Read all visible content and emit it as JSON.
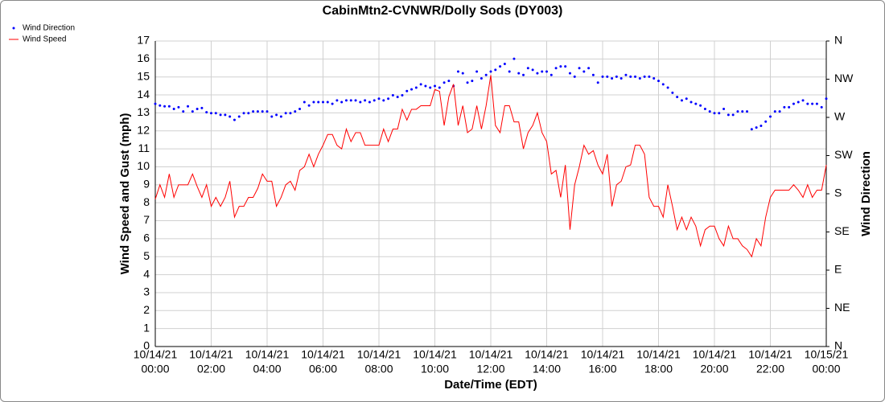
{
  "chart_data": {
    "type": "line",
    "title": "CabinMtn2-CVNWR/Dolly Sods (DY003)",
    "x_label": "Date/Time (EDT)",
    "y_label": "Wind Speed and Gust (mph)",
    "y2_label": "Wind Direction",
    "grid": true,
    "legend": "top-left",
    "xlim": [
      "2021-10-14T00:00",
      "2021-10-15T00:00"
    ],
    "xticks": [
      {
        "value": "2021-10-14T00:00",
        "label": [
          "10/14/21",
          "00:00"
        ]
      },
      {
        "value": "2021-10-14T02:00",
        "label": [
          "10/14/21",
          "02:00"
        ]
      },
      {
        "value": "2021-10-14T04:00",
        "label": [
          "10/14/21",
          "04:00"
        ]
      },
      {
        "value": "2021-10-14T06:00",
        "label": [
          "10/14/21",
          "06:00"
        ]
      },
      {
        "value": "2021-10-14T08:00",
        "label": [
          "10/14/21",
          "08:00"
        ]
      },
      {
        "value": "2021-10-14T10:00",
        "label": [
          "10/14/21",
          "10:00"
        ]
      },
      {
        "value": "2021-10-14T12:00",
        "label": [
          "10/14/21",
          "12:00"
        ]
      },
      {
        "value": "2021-10-14T14:00",
        "label": [
          "10/14/21",
          "14:00"
        ]
      },
      {
        "value": "2021-10-14T16:00",
        "label": [
          "10/14/21",
          "16:00"
        ]
      },
      {
        "value": "2021-10-14T18:00",
        "label": [
          "10/14/21",
          "18:00"
        ]
      },
      {
        "value": "2021-10-14T20:00",
        "label": [
          "10/14/21",
          "20:00"
        ]
      },
      {
        "value": "2021-10-14T22:00",
        "label": [
          "10/14/21",
          "22:00"
        ]
      },
      {
        "value": "2021-10-15T00:00",
        "label": [
          "10/15/21",
          "00:00"
        ]
      }
    ],
    "ylim": [
      0,
      17
    ],
    "yticks": [
      0,
      1,
      2,
      3,
      4,
      5,
      6,
      7,
      8,
      9,
      10,
      11,
      12,
      13,
      14,
      15,
      16,
      17
    ],
    "y2lim": [
      0,
      360
    ],
    "y2ticks": [
      {
        "value": 0,
        "label": "N"
      },
      {
        "value": 45,
        "label": "NE"
      },
      {
        "value": 90,
        "label": "E"
      },
      {
        "value": 135,
        "label": "SE"
      },
      {
        "value": 180,
        "label": "S"
      },
      {
        "value": 225,
        "label": "SW"
      },
      {
        "value": 270,
        "label": "W"
      },
      {
        "value": 315,
        "label": "NW"
      },
      {
        "value": 360,
        "label": "N"
      }
    ],
    "x": [
      "2021-10-14T00:00",
      "2021-10-14T00:10",
      "2021-10-14T00:20",
      "2021-10-14T00:30",
      "2021-10-14T00:40",
      "2021-10-14T00:50",
      "2021-10-14T01:00",
      "2021-10-14T01:10",
      "2021-10-14T01:20",
      "2021-10-14T01:30",
      "2021-10-14T01:40",
      "2021-10-14T01:50",
      "2021-10-14T02:00",
      "2021-10-14T02:10",
      "2021-10-14T02:20",
      "2021-10-14T02:30",
      "2021-10-14T02:40",
      "2021-10-14T02:50",
      "2021-10-14T03:00",
      "2021-10-14T03:10",
      "2021-10-14T03:20",
      "2021-10-14T03:30",
      "2021-10-14T03:40",
      "2021-10-14T03:50",
      "2021-10-14T04:00",
      "2021-10-14T04:10",
      "2021-10-14T04:20",
      "2021-10-14T04:30",
      "2021-10-14T04:40",
      "2021-10-14T04:50",
      "2021-10-14T05:00",
      "2021-10-14T05:10",
      "2021-10-14T05:20",
      "2021-10-14T05:30",
      "2021-10-14T05:40",
      "2021-10-14T05:50",
      "2021-10-14T06:00",
      "2021-10-14T06:10",
      "2021-10-14T06:20",
      "2021-10-14T06:30",
      "2021-10-14T06:40",
      "2021-10-14T06:50",
      "2021-10-14T07:00",
      "2021-10-14T07:10",
      "2021-10-14T07:20",
      "2021-10-14T07:30",
      "2021-10-14T07:40",
      "2021-10-14T07:50",
      "2021-10-14T08:00",
      "2021-10-14T08:10",
      "2021-10-14T08:20",
      "2021-10-14T08:30",
      "2021-10-14T08:40",
      "2021-10-14T08:50",
      "2021-10-14T09:00",
      "2021-10-14T09:10",
      "2021-10-14T09:20",
      "2021-10-14T09:30",
      "2021-10-14T09:40",
      "2021-10-14T09:50",
      "2021-10-14T10:00",
      "2021-10-14T10:10",
      "2021-10-14T10:20",
      "2021-10-14T10:30",
      "2021-10-14T10:40",
      "2021-10-14T10:50",
      "2021-10-14T11:00",
      "2021-10-14T11:10",
      "2021-10-14T11:20",
      "2021-10-14T11:30",
      "2021-10-14T11:40",
      "2021-10-14T11:50",
      "2021-10-14T12:00",
      "2021-10-14T12:10",
      "2021-10-14T12:20",
      "2021-10-14T12:30",
      "2021-10-14T12:40",
      "2021-10-14T12:50",
      "2021-10-14T13:00",
      "2021-10-14T13:10",
      "2021-10-14T13:20",
      "2021-10-14T13:30",
      "2021-10-14T13:40",
      "2021-10-14T13:50",
      "2021-10-14T14:00",
      "2021-10-14T14:10",
      "2021-10-14T14:20",
      "2021-10-14T14:30",
      "2021-10-14T14:40",
      "2021-10-14T14:50",
      "2021-10-14T15:00",
      "2021-10-14T15:10",
      "2021-10-14T15:20",
      "2021-10-14T15:30",
      "2021-10-14T15:40",
      "2021-10-14T15:50",
      "2021-10-14T16:00",
      "2021-10-14T16:10",
      "2021-10-14T16:20",
      "2021-10-14T16:30",
      "2021-10-14T16:40",
      "2021-10-14T16:50",
      "2021-10-14T17:00",
      "2021-10-14T17:10",
      "2021-10-14T17:20",
      "2021-10-14T17:30",
      "2021-10-14T17:40",
      "2021-10-14T17:50",
      "2021-10-14T18:00",
      "2021-10-14T18:10",
      "2021-10-14T18:20",
      "2021-10-14T18:30",
      "2021-10-14T18:40",
      "2021-10-14T18:50",
      "2021-10-14T19:00",
      "2021-10-14T19:10",
      "2021-10-14T19:20",
      "2021-10-14T19:30",
      "2021-10-14T19:40",
      "2021-10-14T19:50",
      "2021-10-14T20:00",
      "2021-10-14T20:10",
      "2021-10-14T20:20",
      "2021-10-14T20:30",
      "2021-10-14T20:40",
      "2021-10-14T20:50",
      "2021-10-14T21:00",
      "2021-10-14T21:10",
      "2021-10-14T21:20",
      "2021-10-14T21:30",
      "2021-10-14T21:40",
      "2021-10-14T21:50",
      "2021-10-14T22:00",
      "2021-10-14T22:10",
      "2021-10-14T22:20",
      "2021-10-14T22:30",
      "2021-10-14T22:40",
      "2021-10-14T22:50",
      "2021-10-14T23:00",
      "2021-10-14T23:10",
      "2021-10-14T23:20",
      "2021-10-14T23:30",
      "2021-10-14T23:40",
      "2021-10-14T23:50",
      "2021-10-15T00:00"
    ],
    "series": [
      {
        "name": "Wind Direction",
        "type": "scatter",
        "axis": "y2",
        "color": "#0000ff",
        "values": [
          286,
          284,
          283,
          283,
          280,
          282,
          277,
          283,
          277,
          280,
          281,
          276,
          275,
          275,
          273,
          273,
          271,
          267,
          271,
          275,
          275,
          277,
          277,
          277,
          277,
          271,
          273,
          271,
          275,
          275,
          277,
          280,
          288,
          284,
          288,
          288,
          288,
          288,
          286,
          290,
          288,
          290,
          290,
          290,
          288,
          290,
          288,
          290,
          292,
          290,
          292,
          296,
          294,
          296,
          301,
          303,
          305,
          309,
          307,
          305,
          307,
          305,
          311,
          313,
          307,
          324,
          322,
          311,
          313,
          324,
          316,
          320,
          324,
          326,
          330,
          333,
          324,
          339,
          322,
          320,
          328,
          326,
          322,
          324,
          324,
          320,
          328,
          330,
          330,
          322,
          318,
          328,
          324,
          328,
          320,
          311,
          318,
          318,
          316,
          318,
          316,
          320,
          318,
          318,
          316,
          318,
          318,
          316,
          313,
          309,
          305,
          299,
          294,
          290,
          292,
          288,
          286,
          284,
          280,
          277,
          275,
          275,
          280,
          273,
          273,
          277,
          277,
          277,
          256,
          258,
          260,
          265,
          271,
          277,
          277,
          282,
          282,
          286,
          288,
          290,
          286,
          286,
          286,
          282,
          292
        ]
      },
      {
        "name": "Wind Speed",
        "type": "line",
        "color": "#ff0000",
        "values": [
          8.2,
          9.0,
          8.3,
          9.6,
          8.3,
          9.0,
          9.0,
          9.0,
          9.6,
          8.9,
          8.3,
          9.0,
          7.8,
          8.3,
          7.8,
          8.3,
          9.2,
          7.2,
          7.8,
          7.8,
          8.3,
          8.3,
          8.8,
          9.6,
          9.2,
          9.2,
          7.8,
          8.3,
          9.0,
          9.2,
          8.7,
          9.8,
          10.0,
          10.7,
          10.0,
          10.7,
          11.2,
          11.8,
          11.8,
          11.2,
          11.0,
          12.1,
          11.4,
          11.9,
          11.9,
          11.2,
          11.2,
          11.2,
          11.2,
          12.1,
          11.4,
          12.1,
          12.1,
          13.2,
          12.6,
          13.2,
          13.2,
          13.4,
          13.4,
          13.4,
          14.3,
          14.2,
          12.3,
          13.9,
          14.6,
          12.3,
          13.4,
          11.9,
          12.1,
          13.4,
          12.1,
          13.4,
          15.1,
          12.3,
          11.9,
          13.4,
          13.4,
          12.5,
          12.5,
          11.0,
          11.9,
          12.3,
          13.0,
          11.9,
          11.4,
          9.6,
          9.8,
          8.3,
          10.1,
          6.5,
          9.0,
          10.0,
          11.2,
          10.7,
          10.9,
          10.1,
          9.6,
          10.7,
          7.8,
          9.0,
          9.2,
          10.0,
          10.1,
          11.2,
          11.2,
          10.7,
          8.3,
          7.8,
          7.8,
          7.2,
          9.0,
          7.8,
          6.5,
          7.2,
          6.5,
          7.2,
          6.7,
          5.6,
          6.5,
          6.7,
          6.7,
          6.0,
          5.6,
          6.7,
          6.0,
          6.0,
          5.6,
          5.4,
          5.0,
          6.0,
          5.6,
          7.2,
          8.3,
          8.7,
          8.7,
          8.7,
          8.7,
          9.0,
          8.7,
          8.3,
          9.0,
          8.3,
          8.7,
          8.7,
          10.1
        ]
      }
    ]
  }
}
